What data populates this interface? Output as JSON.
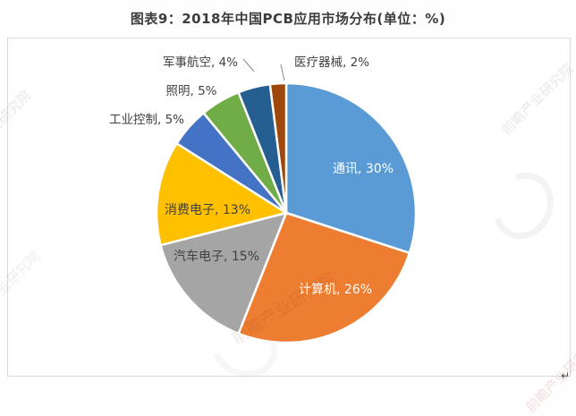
{
  "title": "图表9：2018年中国PCB应用市场分布(单位：%)",
  "chart_data": {
    "type": "pie",
    "title": "图表9：2018年中国PCB应用市场分布(单位：%)",
    "unit": "%",
    "start_angle_deg": 0,
    "direction": "clockwise",
    "legend_position": "none",
    "labels_on_slices": true,
    "slices": [
      {
        "label": "通讯",
        "value": 30,
        "color": "#5B9BD5",
        "display": "通讯, 30%",
        "label_placement": "inside-white"
      },
      {
        "label": "计算机",
        "value": 26,
        "color": "#ED7D31",
        "display": "计算机, 26%",
        "label_placement": "inside-white"
      },
      {
        "label": "汽车电子",
        "value": 15,
        "color": "#A5A5A5",
        "display": "汽车电子, 15%",
        "label_placement": "inside-dark"
      },
      {
        "label": "消费电子",
        "value": 13,
        "color": "#FFC000",
        "display": "消费电子, 13%",
        "label_placement": "inside-dark"
      },
      {
        "label": "工业控制",
        "value": 5,
        "color": "#4472C4",
        "display": "工业控制, 5%",
        "label_placement": "outside"
      },
      {
        "label": "照明",
        "value": 5,
        "color": "#70AD47",
        "display": "照明, 5%",
        "label_placement": "outside"
      },
      {
        "label": "军事航空",
        "value": 4,
        "color": "#255E91",
        "display": "军事航空, 4%",
        "label_placement": "outside-leader"
      },
      {
        "label": "医疗器械",
        "value": 2,
        "color": "#9E480E",
        "display": "医疗器械, 2%",
        "label_placement": "outside-leader"
      }
    ]
  },
  "watermark": {
    "text": "前瞻产业研究院"
  },
  "return_mark": "↵"
}
